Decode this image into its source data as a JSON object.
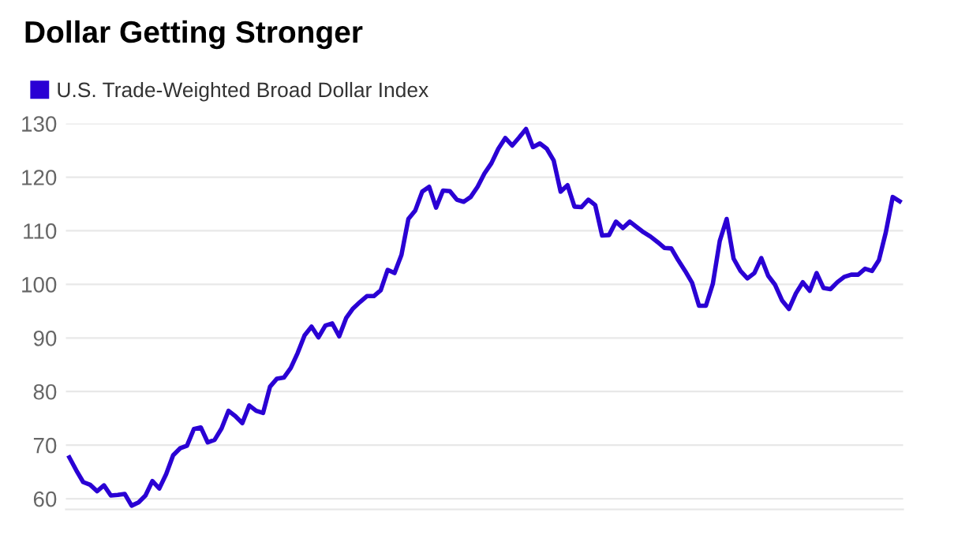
{
  "chart_data": {
    "type": "line",
    "title": "Dollar Getting Stronger",
    "categories": [
      null,
      null,
      null,
      null,
      null,
      null,
      null,
      null,
      null,
      null,
      null,
      null,
      null,
      null,
      null,
      null,
      null,
      null,
      null,
      null,
      null,
      null,
      null,
      null,
      null,
      null,
      null,
      null,
      null,
      null,
      null,
      null,
      null,
      null,
      null,
      null,
      null,
      null,
      null,
      null,
      null,
      null,
      null,
      null,
      null,
      null,
      null,
      null,
      null,
      null,
      null,
      null,
      null,
      null,
      null,
      null,
      null,
      null,
      null,
      null,
      null,
      null,
      null,
      null,
      null,
      null,
      null,
      null,
      null,
      null,
      null,
      null,
      null,
      null,
      null,
      null,
      null,
      null,
      null,
      null,
      null,
      null,
      null,
      null,
      null,
      null,
      null,
      null,
      null,
      null,
      null,
      null,
      null,
      null,
      null,
      null,
      null,
      null,
      null,
      null,
      null,
      null,
      null,
      null,
      null,
      null,
      null,
      null,
      null,
      null,
      null,
      null,
      null,
      null,
      null,
      null,
      null,
      null,
      null,
      null,
      null
    ],
    "series": [
      {
        "name": "U.S. Trade-Weighted Broad Dollar Index",
        "color": "#2a00d4",
        "values": [
          67.7,
          65.3,
          63.1,
          62.6,
          61.4,
          62.5,
          60.6,
          60.7,
          60.9,
          58.7,
          59.3,
          60.6,
          63.3,
          61.9,
          64.6,
          68.1,
          69.4,
          69.9,
          73.0,
          73.3,
          70.5,
          71.0,
          73.1,
          76.4,
          75.4,
          74.1,
          77.4,
          76.4,
          76.0,
          80.9,
          82.4,
          82.6,
          84.4,
          87.2,
          90.5,
          92.1,
          90.1,
          92.3,
          92.7,
          90.3,
          93.7,
          95.5,
          96.7,
          97.8,
          97.8,
          98.9,
          102.7,
          102.1,
          105.5,
          112.2,
          113.8,
          117.3,
          118.2,
          114.3,
          117.5,
          117.4,
          115.8,
          115.4,
          116.3,
          118.2,
          120.7,
          122.6,
          125.3,
          127.3,
          125.9,
          127.4,
          129.0,
          125.6,
          126.3,
          125.3,
          123.1,
          117.3,
          118.5,
          114.5,
          114.4,
          115.8,
          114.8,
          109.1,
          109.2,
          111.7,
          110.5,
          111.7,
          110.7,
          109.7,
          108.9,
          107.9,
          106.8,
          106.7,
          104.5,
          102.5,
          100.3,
          96.0,
          96.0,
          100.1,
          108.1,
          112.2,
          104.8,
          102.5,
          101.1,
          102.1,
          104.9,
          101.6,
          99.9,
          97.0,
          95.4,
          98.3,
          100.4,
          98.8,
          102.1,
          99.3,
          99.1,
          100.4,
          101.4,
          101.8,
          101.8,
          102.9,
          102.5,
          104.5,
          109.7,
          116.3,
          115.5
        ]
      }
    ],
    "ylim": [
      58,
      130
    ],
    "yticks": [
      60,
      70,
      80,
      90,
      100,
      110,
      120,
      130
    ],
    "grid": "y",
    "legend": "top left",
    "tick_labels": "y",
    "marker": "none",
    "line_style": "solid"
  }
}
